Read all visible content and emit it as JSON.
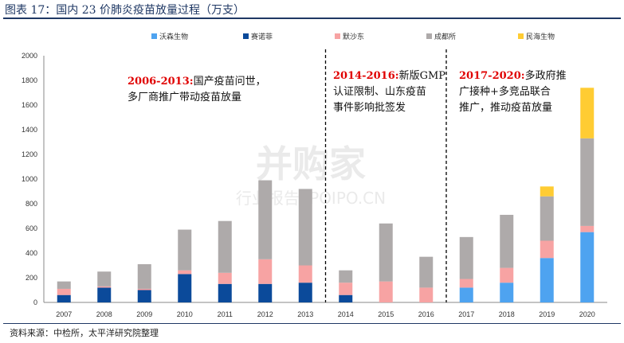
{
  "header": {
    "title": "图表 17：国内 23 价肺炎疫苗放量过程（万支）"
  },
  "footer": {
    "source": "资料来源：中检所，太平洋研究院整理"
  },
  "watermark": {
    "line1": "并购家",
    "line2": "行业报告 IPOIPO.CN"
  },
  "colors": {
    "rule": "#1f3864"
  },
  "annotations": [
    {
      "lines": [
        [
          {
            "t": "2006-2013:",
            "red": true
          },
          {
            "t": "国产疫苗问世，",
            "red": false
          }
        ],
        [
          {
            "t": "多厂商推广带动疫苗放量",
            "red": false
          }
        ]
      ]
    },
    {
      "lines": [
        [
          {
            "t": "2014-2016:",
            "red": true
          },
          {
            "t": "新版GMP",
            "red": false
          }
        ],
        [
          {
            "t": "认证限制、山东疫苗",
            "red": false
          }
        ],
        [
          {
            "t": "事件影响批签发",
            "red": false
          }
        ]
      ]
    },
    {
      "lines": [
        [
          {
            "t": "2017-2020:",
            "red": true
          },
          {
            "t": "多政府推",
            "red": false
          }
        ],
        [
          {
            "t": "广接种+多竞品联合",
            "red": false
          }
        ],
        [
          {
            "t": "推广，推动疫苗放量",
            "red": false
          }
        ]
      ]
    }
  ],
  "chart_data": {
    "type": "bar",
    "stacked": true,
    "categories": [
      "2007",
      "2008",
      "2009",
      "2010",
      "2011",
      "2012",
      "2013",
      "2014",
      "2015",
      "2016",
      "2017",
      "2018",
      "2019",
      "2020"
    ],
    "ylim": [
      0,
      2000
    ],
    "yticks": [
      0,
      200,
      400,
      600,
      800,
      1000,
      1200,
      1400,
      1600,
      1800,
      2000
    ],
    "legend_position": "top",
    "series": [
      {
        "name": "沃森生物",
        "color": "#4ea3f0",
        "values": [
          0,
          0,
          0,
          0,
          0,
          0,
          0,
          0,
          0,
          0,
          120,
          160,
          360,
          570
        ]
      },
      {
        "name": "赛诺菲",
        "color": "#0b4a9a",
        "values": [
          60,
          120,
          100,
          230,
          150,
          150,
          160,
          60,
          0,
          0,
          0,
          0,
          0,
          0
        ]
      },
      {
        "name": "默沙东",
        "color": "#f7a3a3",
        "values": [
          50,
          10,
          10,
          30,
          90,
          200,
          140,
          100,
          170,
          120,
          70,
          120,
          140,
          50
        ]
      },
      {
        "name": "成都所",
        "color": "#aeaaaa",
        "values": [
          60,
          120,
          200,
          330,
          420,
          640,
          620,
          100,
          470,
          250,
          340,
          430,
          360,
          710
        ]
      },
      {
        "name": "民海生物",
        "color": "#ffcc33",
        "values": [
          0,
          0,
          0,
          0,
          0,
          0,
          0,
          0,
          0,
          0,
          0,
          0,
          80,
          410
        ]
      }
    ],
    "phase_dividers_after": [
      "2013",
      "2016"
    ]
  }
}
